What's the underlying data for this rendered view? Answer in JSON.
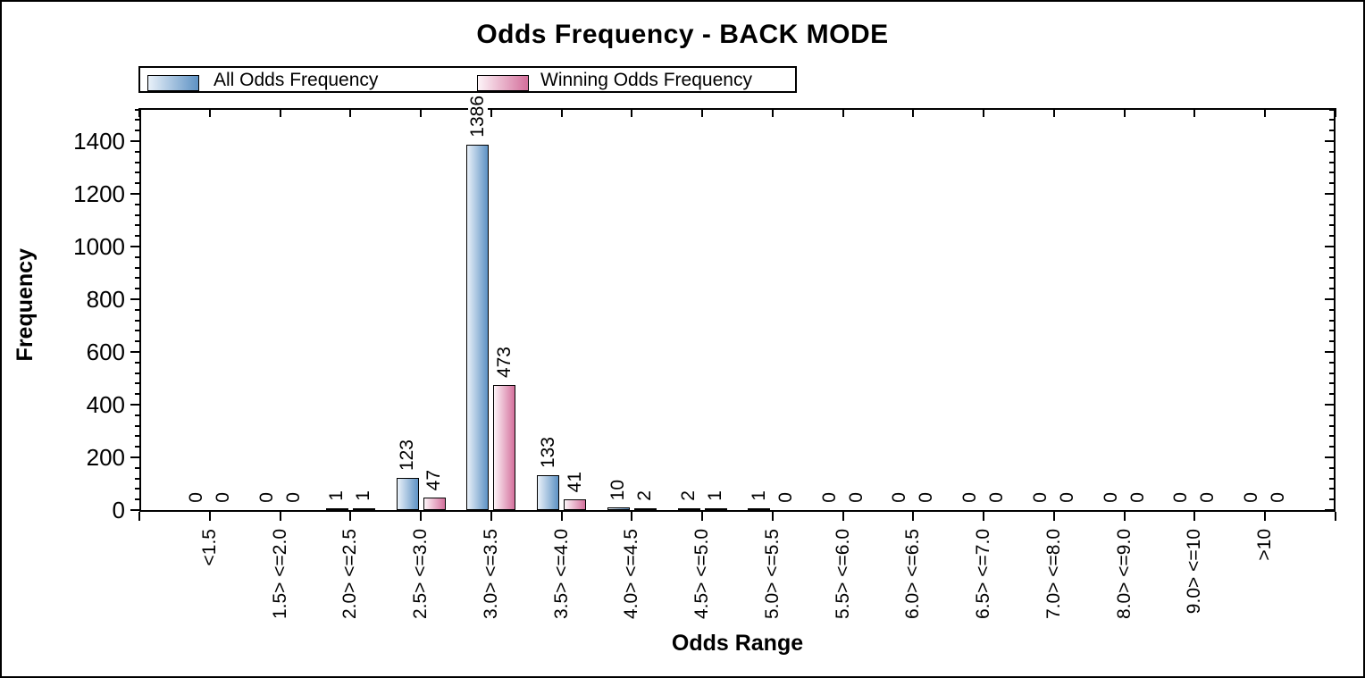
{
  "chart_data": {
    "type": "bar",
    "title": "Odds Frequency - BACK MODE",
    "xlabel": "Odds Range",
    "ylabel": "Frequency",
    "legend_position": "top-left",
    "grid": false,
    "bar_value_labels": true,
    "categories": [
      "<1.5",
      "1.5> <=2.0",
      "2.0> <=2.5",
      "2.5> <=3.0",
      "3.0> <=3.5",
      "3.5> <=4.0",
      "4.0> <=4.5",
      "4.5> <=5.0",
      "5.0> <=5.5",
      "5.5> <=6.0",
      "6.0> <=6.5",
      "6.5> <=7.0",
      "7.0> <=8.0",
      "8.0> <=9.0",
      "9.0> <=10",
      ">10"
    ],
    "series": [
      {
        "name": "All Odds Frequency",
        "gradient_left": "#e9f1f9",
        "gradient_right": "#5e92c4",
        "values": [
          0,
          0,
          1,
          123,
          1386,
          133,
          10,
          2,
          1,
          0,
          0,
          0,
          0,
          0,
          0,
          0
        ]
      },
      {
        "name": "Winning Odds Frequency",
        "gradient_left": "#fdf4f8",
        "gradient_right": "#d4709c",
        "values": [
          0,
          0,
          1,
          47,
          473,
          41,
          2,
          1,
          0,
          0,
          0,
          0,
          0,
          0,
          0,
          0
        ]
      }
    ],
    "ylim": [
      0,
      1520
    ],
    "y_major_step": 200,
    "y_minor_step": 40,
    "y_tick_labels": [
      "0",
      "200",
      "400",
      "600",
      "800",
      "1000",
      "1200",
      "1400"
    ],
    "axis_color": "#000000",
    "background_color": "#ffffff"
  }
}
